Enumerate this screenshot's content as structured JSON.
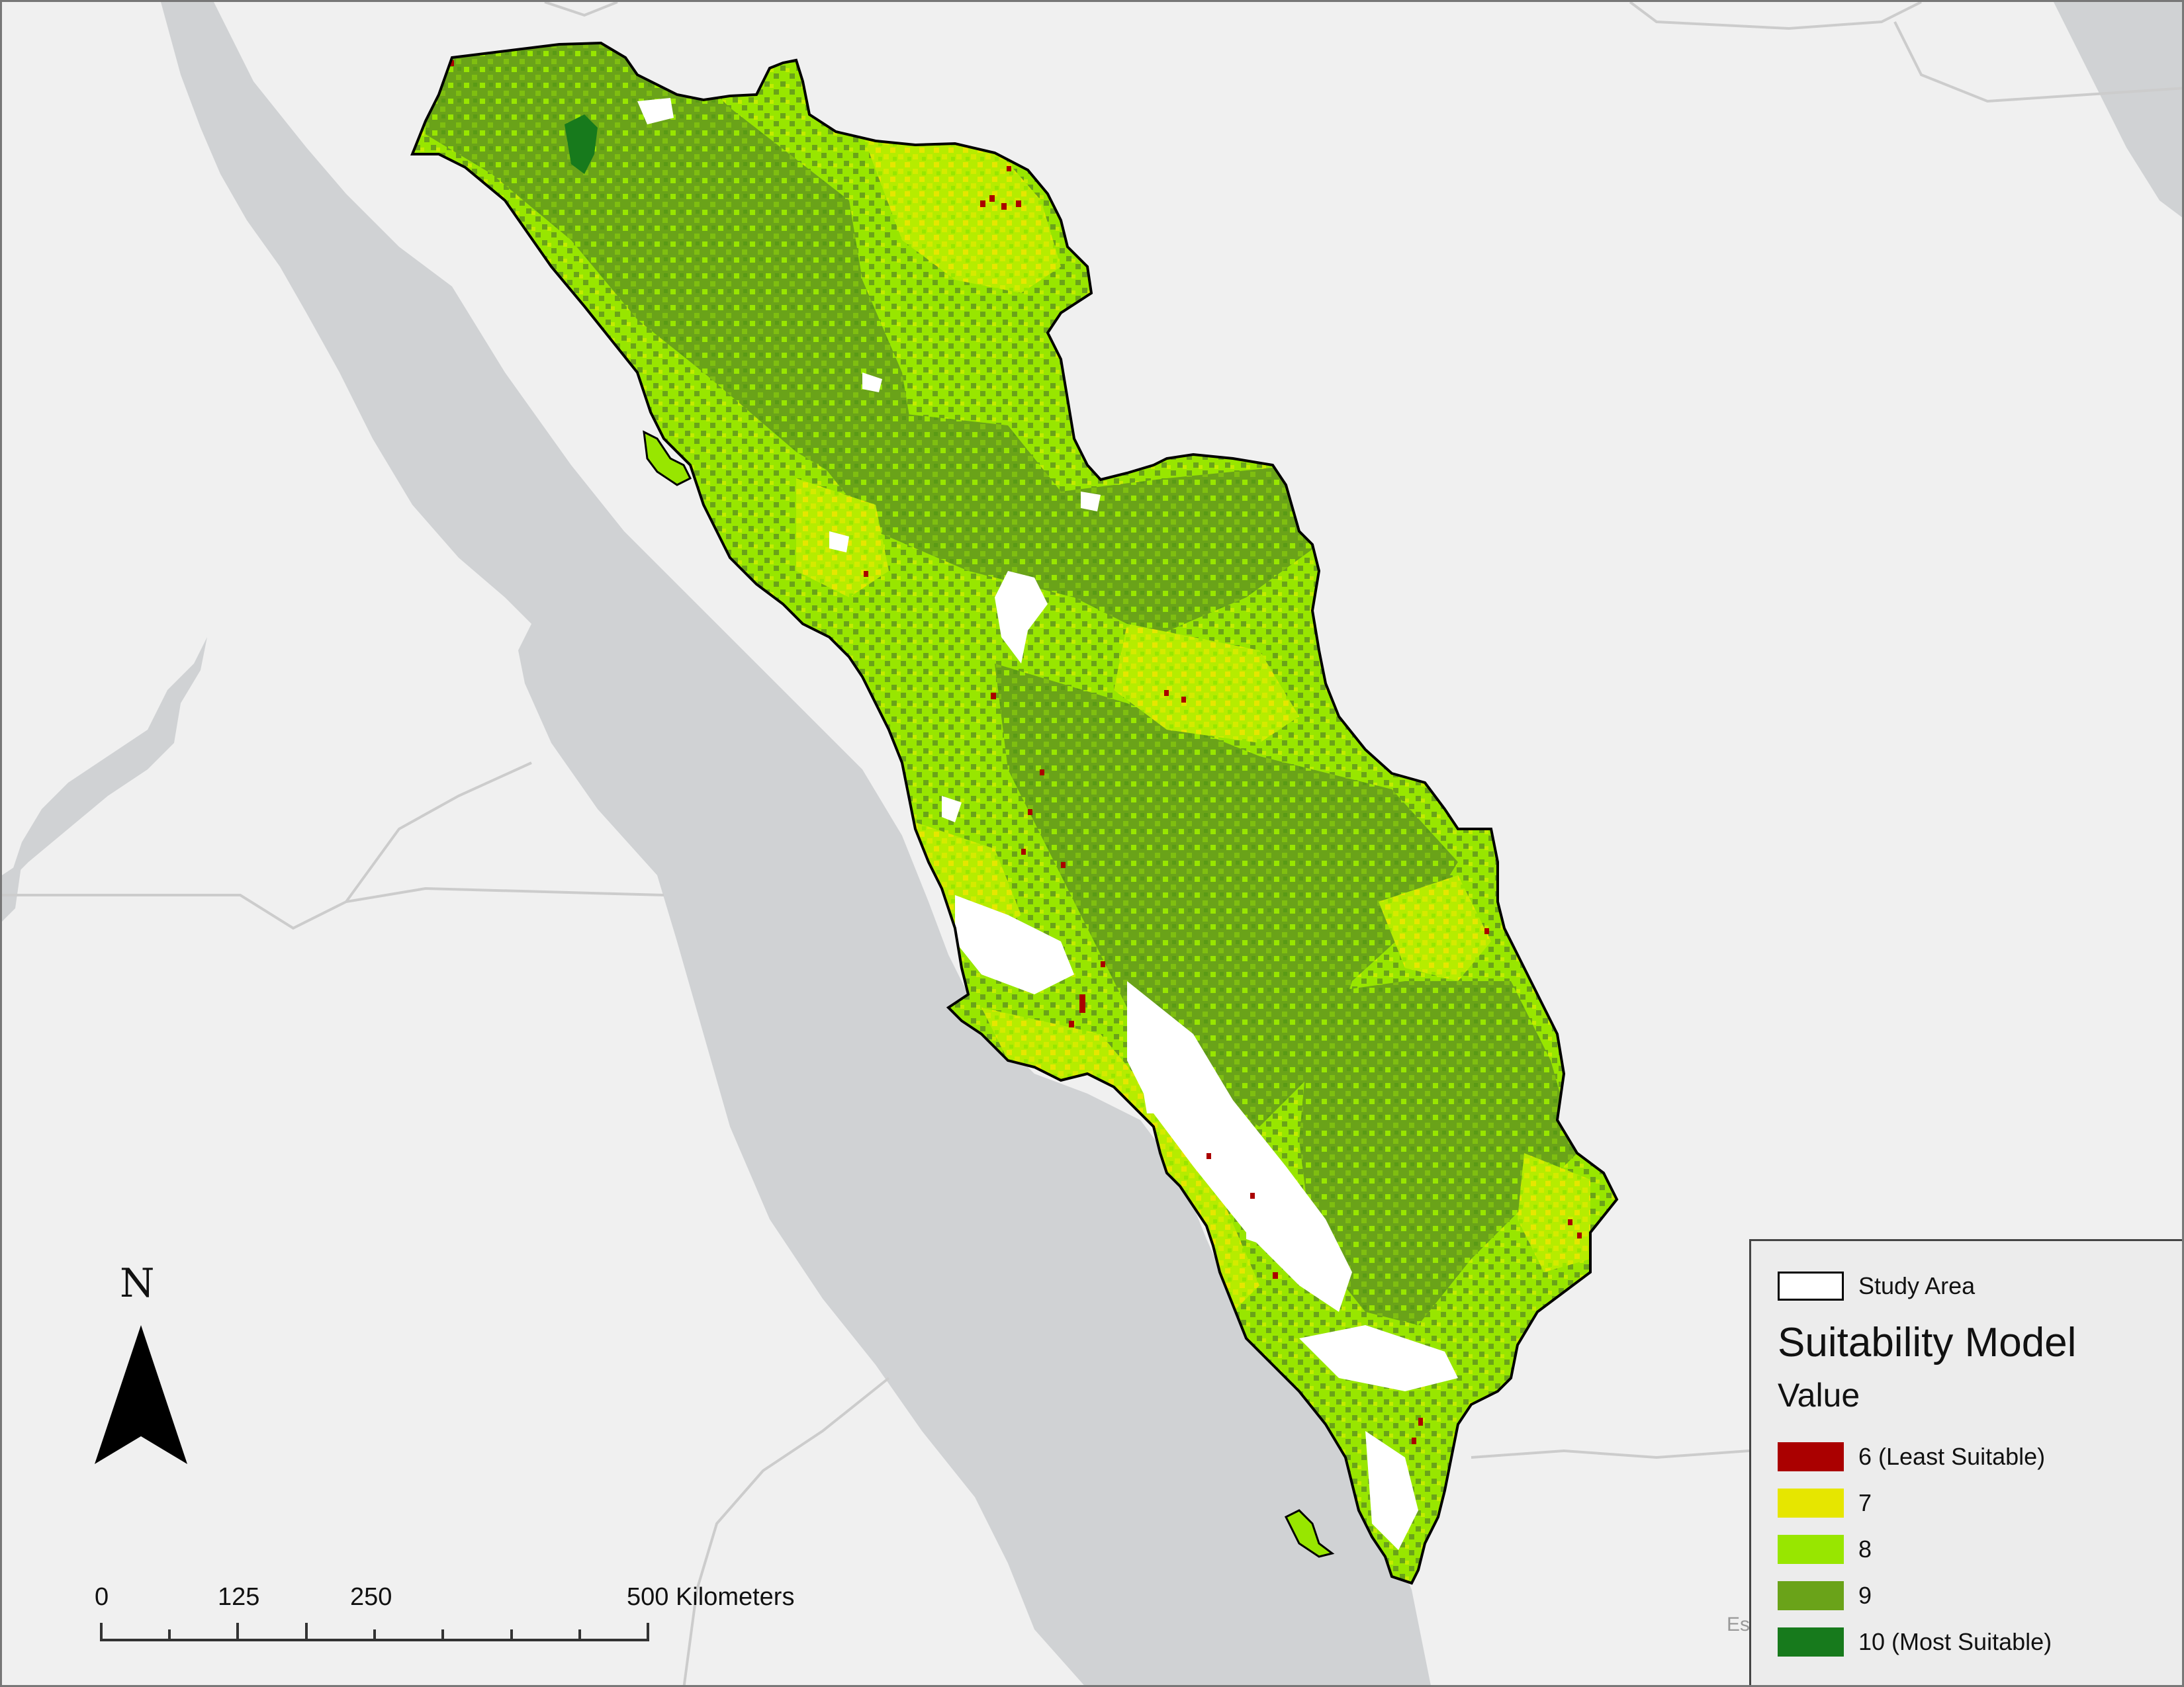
{
  "map": {
    "basemap_colors": {
      "land": "#f0f0f0",
      "water": "#d0d2d4",
      "boundary": "#cccccc"
    }
  },
  "legend": {
    "study_area_label": "Study Area",
    "title": "Suitability Model",
    "subtitle": "Value",
    "classes": [
      {
        "value": 6,
        "label": "6 (Least Suitable)",
        "color": "#aa0000"
      },
      {
        "value": 7,
        "label": "7",
        "color": "#e6e600"
      },
      {
        "value": 8,
        "label": "8",
        "color": "#98e600"
      },
      {
        "value": 9,
        "label": "9",
        "color": "#6aa319"
      },
      {
        "value": 10,
        "label": "10 (Most Suitable)",
        "color": "#177a1c"
      }
    ]
  },
  "north_arrow": {
    "label": "N"
  },
  "scale_bar": {
    "labels": [
      "0",
      "125",
      "250",
      "500 Kilometers"
    ]
  },
  "attribution": "Es"
}
